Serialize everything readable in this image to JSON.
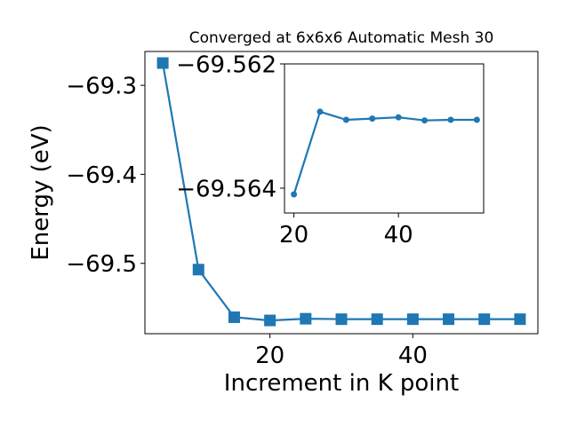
{
  "chart_data": [
    {
      "type": "line",
      "title": "Converged at 6x6x6 Automatic Mesh 30",
      "xlabel": "Increment in K point",
      "ylabel": "Energy (eV)",
      "xlim": [
        2.5,
        57.5
      ],
      "ylim": [
        -69.579,
        -69.262
      ],
      "xticks": [
        20,
        40
      ],
      "xtick_labels": [
        "20",
        "40"
      ],
      "yticks": [
        -69.3,
        -69.4,
        -69.5
      ],
      "ytick_labels": [
        "−69.3",
        "−69.4",
        "−69.5"
      ],
      "grid": false,
      "marker": "square",
      "color": "#1f77b4",
      "series": [
        {
          "x": [
            5,
            10,
            15,
            20,
            25,
            30,
            35,
            40,
            45,
            50,
            55
          ],
          "y": [
            -69.275,
            -69.507,
            -69.5605,
            -69.5641,
            -69.5622,
            -69.5627,
            -69.5627,
            -69.5627,
            -69.5627,
            -69.5627,
            -69.5627
          ]
        }
      ]
    },
    {
      "type": "line",
      "inset": true,
      "xlim": [
        18.2,
        56.3
      ],
      "ylim": [
        -69.5644,
        -69.562
      ],
      "xticks": [
        20,
        40
      ],
      "xtick_labels": [
        "20",
        "40"
      ],
      "yticks": [
        -69.564,
        -69.562
      ],
      "ytick_labels": [
        "−69.564",
        "−69.562"
      ],
      "grid": false,
      "marker": "circle",
      "color": "#1f77b4",
      "series": [
        {
          "x": [
            20,
            25,
            30,
            35,
            40,
            45,
            50,
            55
          ],
          "y": [
            -69.5641,
            -69.56277,
            -69.5629,
            -69.56288,
            -69.56286,
            -69.56291,
            -69.5629,
            -69.5629
          ]
        }
      ]
    }
  ]
}
